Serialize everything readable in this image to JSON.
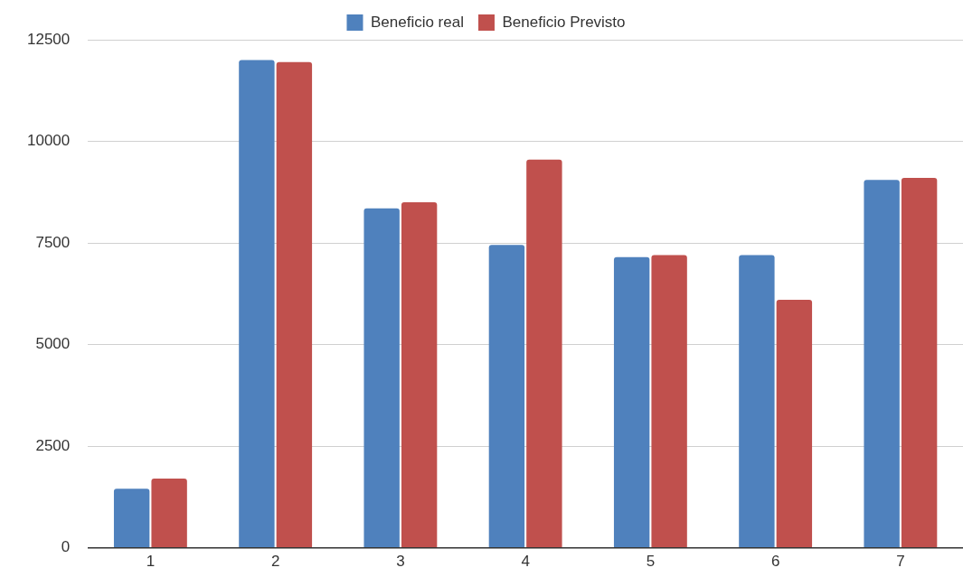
{
  "chart_data": {
    "type": "bar",
    "categories": [
      "1",
      "2",
      "3",
      "4",
      "5",
      "6",
      "7"
    ],
    "series": [
      {
        "name": "Beneficio real",
        "color": "#4f81bd",
        "values": [
          1450,
          12000,
          8350,
          7450,
          7150,
          7200,
          9050
        ]
      },
      {
        "name": "Beneficio Previsto",
        "color": "#c0504d",
        "values": [
          1700,
          11950,
          8500,
          9550,
          7200,
          6100,
          9100
        ]
      }
    ],
    "ylim": [
      0,
      12500
    ],
    "yticks": [
      0,
      2500,
      5000,
      7500,
      10000,
      12500
    ],
    "grid": "y",
    "legend": "top"
  }
}
